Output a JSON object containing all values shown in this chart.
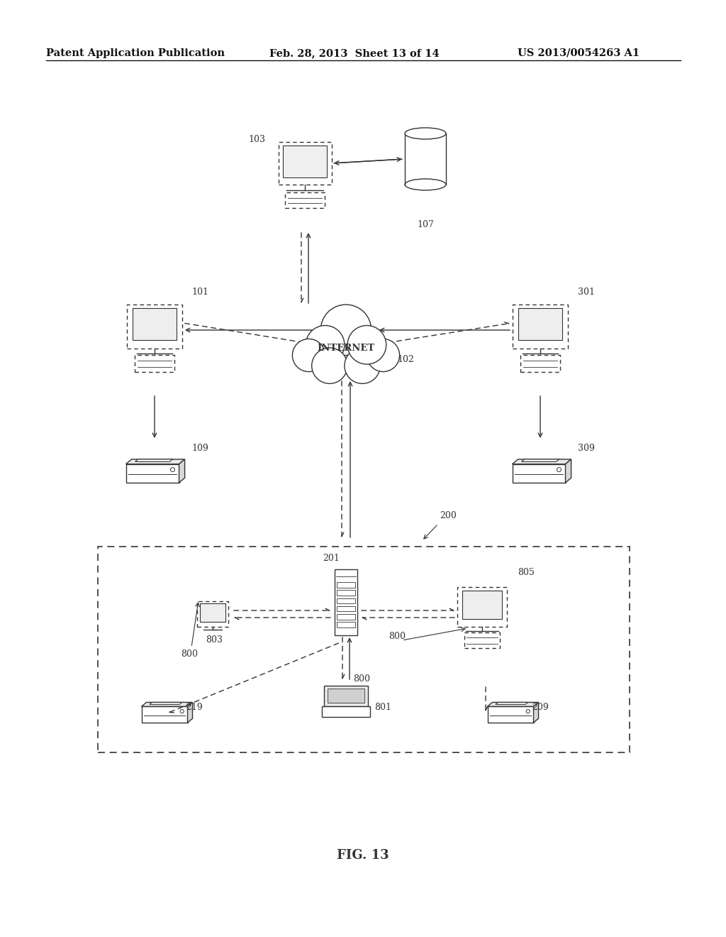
{
  "background_color": "#ffffff",
  "header_left": "Patent Application Publication",
  "header_mid": "Feb. 28, 2013  Sheet 13 of 14",
  "header_right": "US 2013/0054263 A1",
  "footer_label": "FIG. 13",
  "header_fontsize": 10.5,
  "footer_fontsize": 13,
  "diagram_color": "#333333",
  "fig_width": 10.24,
  "fig_height": 13.2
}
